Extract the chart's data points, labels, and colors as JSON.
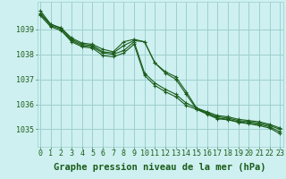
{
  "bg_color": "#cef0f0",
  "grid_color": "#9ecece",
  "line_color": "#1a5c1a",
  "marker_color": "#1a5c1a",
  "xlabel": "Graphe pression niveau de la mer (hPa)",
  "xlabel_fontsize": 7.5,
  "tick_fontsize": 6,
  "ylim": [
    1034.3,
    1040.1
  ],
  "xlim": [
    -0.3,
    23.3
  ],
  "yticks": [
    1035,
    1036,
    1037,
    1038,
    1039
  ],
  "xticks": [
    0,
    1,
    2,
    3,
    4,
    5,
    6,
    7,
    8,
    9,
    10,
    11,
    12,
    13,
    14,
    15,
    16,
    17,
    18,
    19,
    20,
    21,
    22,
    23
  ],
  "series": [
    [
      1039.75,
      1039.2,
      1039.05,
      1038.65,
      1038.45,
      1038.4,
      1038.2,
      1038.1,
      1038.5,
      1038.6,
      1038.5,
      1037.65,
      1037.3,
      1037.1,
      1036.5,
      1035.85,
      1035.7,
      1035.55,
      1035.5,
      1035.4,
      1035.35,
      1035.3,
      1035.2,
      1035.05
    ],
    [
      1039.65,
      1039.2,
      1039.05,
      1038.6,
      1038.4,
      1038.35,
      1038.1,
      1038.05,
      1038.35,
      1038.55,
      1038.5,
      1037.65,
      1037.25,
      1037.0,
      1036.4,
      1035.8,
      1035.65,
      1035.5,
      1035.45,
      1035.35,
      1035.3,
      1035.25,
      1035.15,
      1035.0
    ],
    [
      1039.6,
      1039.15,
      1039.0,
      1038.55,
      1038.35,
      1038.3,
      1038.05,
      1038.0,
      1038.15,
      1038.5,
      1037.25,
      1036.85,
      1036.6,
      1036.4,
      1036.05,
      1035.85,
      1035.65,
      1035.45,
      1035.4,
      1035.3,
      1035.25,
      1035.2,
      1035.1,
      1034.9
    ],
    [
      1039.55,
      1039.1,
      1038.95,
      1038.5,
      1038.3,
      1038.25,
      1037.95,
      1037.9,
      1038.05,
      1038.4,
      1037.15,
      1036.75,
      1036.5,
      1036.3,
      1035.95,
      1035.8,
      1035.6,
      1035.42,
      1035.38,
      1035.28,
      1035.22,
      1035.15,
      1035.05,
      1034.82
    ]
  ]
}
